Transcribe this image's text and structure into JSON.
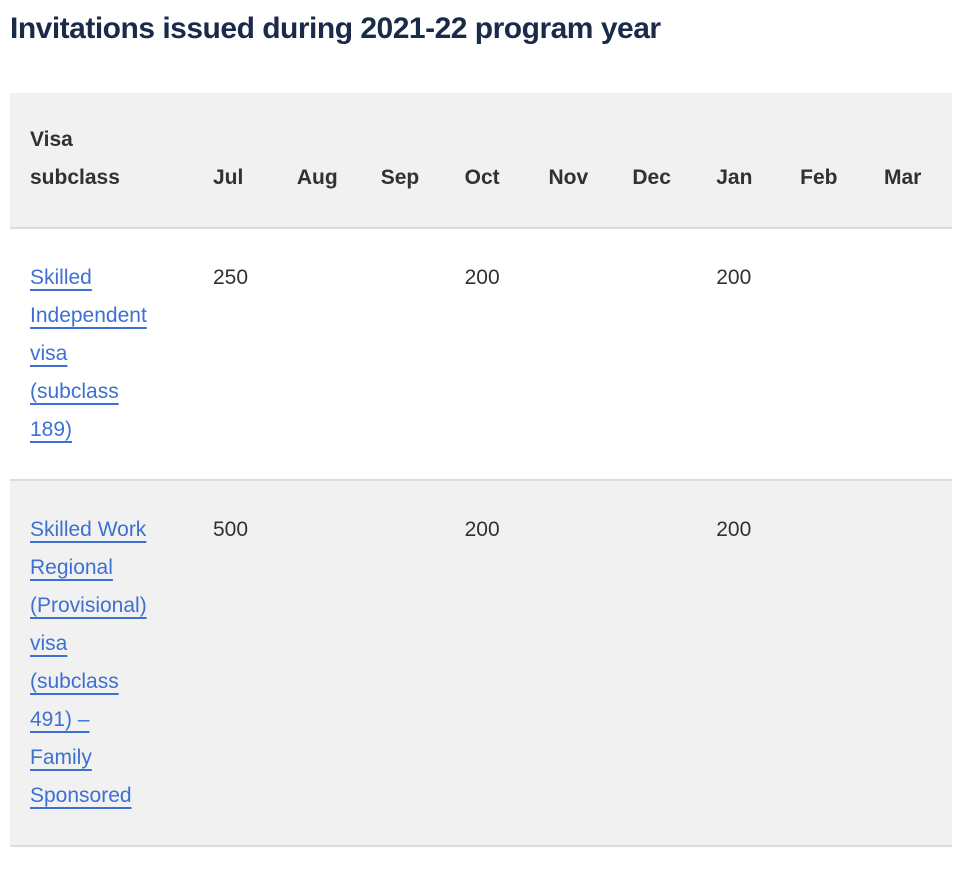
{
  "title": "Invitations issued during 2021-22 program year",
  "colors": {
    "title_text": "#1a2b4a",
    "link_blue": "#3e70d4",
    "row_alt_background": "#f1f1f1",
    "row_border": "#dcdcdc",
    "body_text": "#313131"
  },
  "table": {
    "columns": [
      "Visa subclass",
      "Jul",
      "Aug",
      "Sep",
      "Oct",
      "Nov",
      "Dec",
      "Jan",
      "Feb",
      "Mar"
    ],
    "rows": [
      {
        "visa_link": {
          "text": "Skilled Independent visa (subclass 189)"
        },
        "values": [
          "250",
          "",
          "",
          "200",
          "",
          "",
          "200",
          "",
          ""
        ]
      },
      {
        "visa_link": {
          "text": "Skilled Work Regional (Provisional) visa (subclass 491) – Family Sponsored"
        },
        "values": [
          "500",
          "",
          "",
          "200",
          "",
          "",
          "200",
          "",
          ""
        ]
      }
    ]
  }
}
